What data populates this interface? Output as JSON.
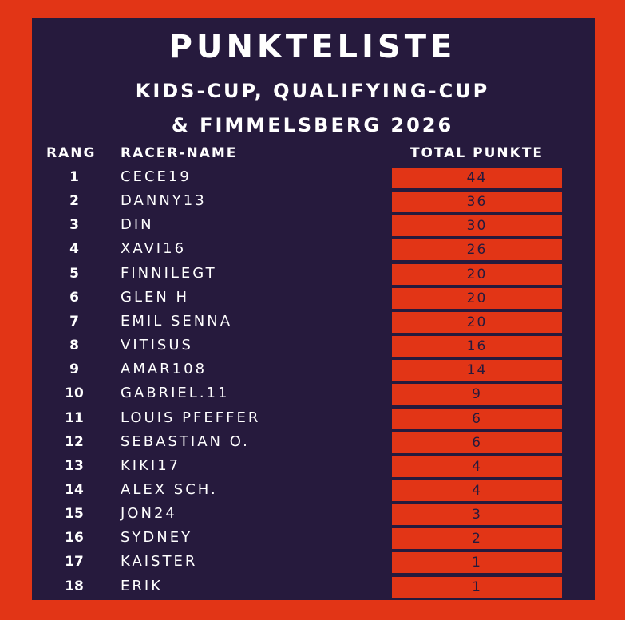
{
  "header": {
    "title": "PUNKTELISTE",
    "subtitle": [
      "KIDS-CUP, QUALIFYING-CUP",
      "& FIMMELSBERG 2026"
    ]
  },
  "table": {
    "columns": [
      "RANG",
      "RACER-NAME",
      "TOTAL PUNKTE"
    ],
    "rows": [
      [
        1,
        "CECE19",
        44
      ],
      [
        2,
        "DANNY13",
        36
      ],
      [
        3,
        "DIN",
        30
      ],
      [
        4,
        "XAVI16",
        26
      ],
      [
        5,
        "FINNILEGT",
        20
      ],
      [
        6,
        "GLEN H",
        20
      ],
      [
        7,
        "EMIL SENNA",
        20
      ],
      [
        8,
        "VITISUS",
        16
      ],
      [
        9,
        "AMAR108",
        14
      ],
      [
        10,
        "GABRIEL.11",
        9
      ],
      [
        11,
        "LOUIS PFEFFER",
        6
      ],
      [
        12,
        "SEBASTIAN O.",
        6
      ],
      [
        13,
        "KIKI17",
        4
      ],
      [
        14,
        "ALEX SCH.",
        4
      ],
      [
        15,
        "JON24",
        3
      ],
      [
        16,
        "SYDNEY",
        2
      ],
      [
        17,
        "KAISTER",
        1
      ],
      [
        18,
        "ERIK",
        1
      ]
    ]
  }
}
